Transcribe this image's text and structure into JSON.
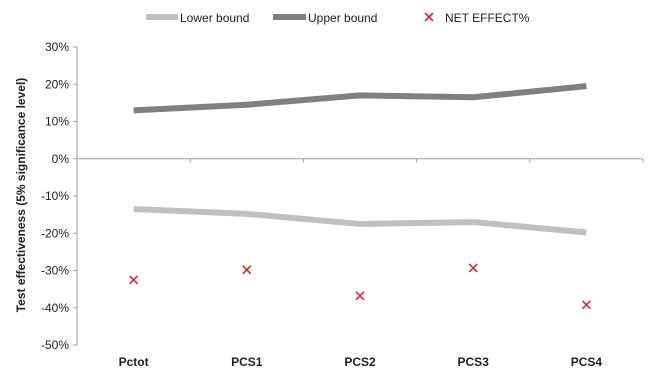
{
  "chart_data": {
    "type": "line",
    "title": "",
    "xlabel": "",
    "ylabel": "Test effectiveness (5% significance level)",
    "categories": [
      "Pctot",
      "PCS1",
      "PCS2",
      "PCS3",
      "PCS4"
    ],
    "y_ticks": [
      "30%",
      "20%",
      "10%",
      "0%",
      "-10%",
      "-20%",
      "-30%",
      "-40%",
      "-50%"
    ],
    "ylim": [
      -50,
      30
    ],
    "grid": false,
    "legend_position": "top",
    "series": [
      {
        "name": "Lower bound",
        "kind": "line",
        "color": "#c0c0c0",
        "values": [
          -13.5,
          -14.8,
          -17.5,
          -17,
          -19.8
        ]
      },
      {
        "name": "Upper bound",
        "kind": "line",
        "color": "#808080",
        "values": [
          13,
          14.5,
          17,
          16.5,
          19.5
        ]
      },
      {
        "name": "NET EFFECT%",
        "kind": "marker",
        "marker": "x",
        "color": "#e0262b",
        "values": [
          -32.5,
          -29.8,
          -36.8,
          -29.3,
          -39.2
        ]
      }
    ]
  }
}
